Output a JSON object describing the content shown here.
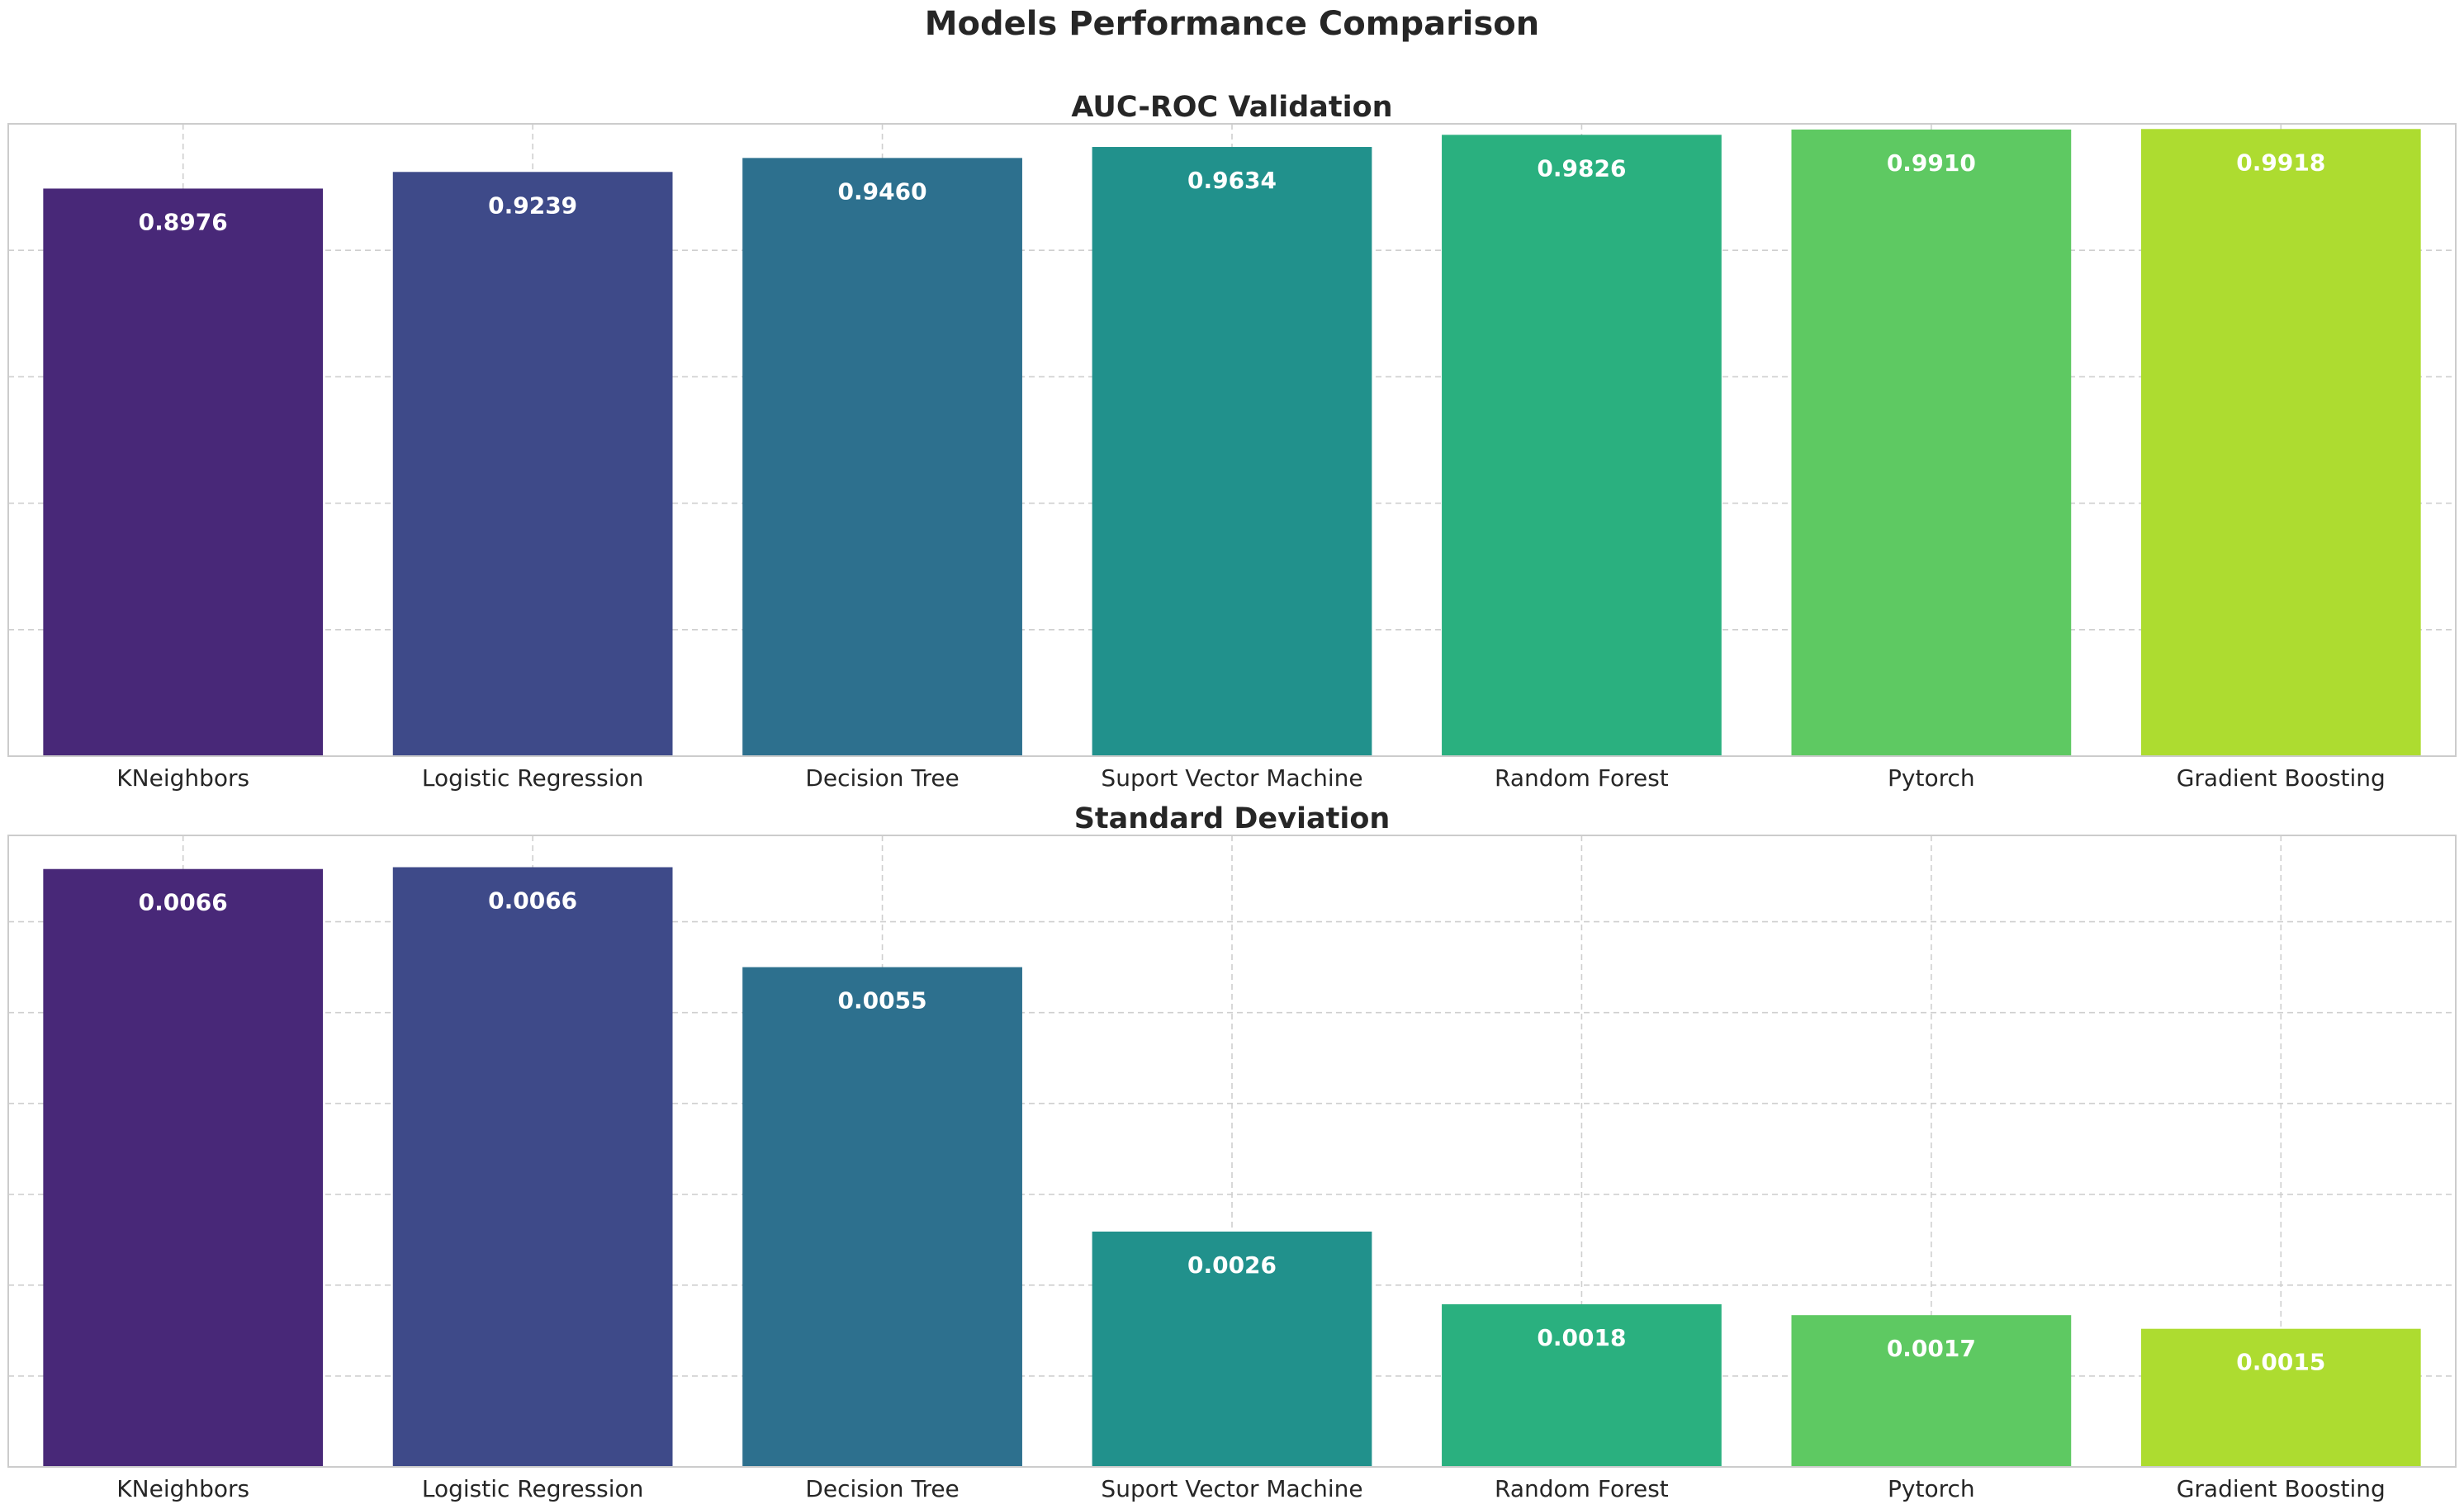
{
  "figure": {
    "title": "Models Performance Comparison"
  },
  "colors": [
    "#482878",
    "#3e4a89",
    "#2d708e",
    "#21918c",
    "#2ab07f",
    "#5ec962",
    "#addc30"
  ],
  "chart_data": [
    {
      "type": "bar",
      "title": "AUC-ROC Validation",
      "categories": [
        "KNeighbors",
        "Logistic Regression",
        "Decision Tree",
        "Suport Vector Machine",
        "Random Forest",
        "Pytorch",
        "Gradient Boosting"
      ],
      "values": [
        0.8976,
        0.9239,
        0.946,
        0.9634,
        0.9826,
        0.991,
        0.9918
      ],
      "labels": [
        "0.8976",
        "0.9239",
        "0.9460",
        "0.9634",
        "0.9826",
        "0.9910",
        "0.9918"
      ],
      "xlabel": "",
      "ylabel": "",
      "ylim": [
        0,
        1.0
      ],
      "yticks": [
        0,
        0.2,
        0.4,
        0.6,
        0.8,
        1.0
      ],
      "ytick_labels_visible": false,
      "grid": true
    },
    {
      "type": "bar",
      "title": "Standard Deviation",
      "categories": [
        "KNeighbors",
        "Logistic Regression",
        "Decision Tree",
        "Suport Vector Machine",
        "Random Forest",
        "Pytorch",
        "Gradient Boosting"
      ],
      "values": [
        0.00658,
        0.0066,
        0.0055,
        0.00259,
        0.00179,
        0.00167,
        0.00152
      ],
      "labels": [
        "0.0066",
        "0.0066",
        "0.0055",
        "0.0026",
        "0.0018",
        "0.0017",
        "0.0015"
      ],
      "xlabel": "",
      "ylabel": "",
      "ylim": [
        0,
        0.00695
      ],
      "yticks": [
        0,
        0.001,
        0.002,
        0.003,
        0.004,
        0.005,
        0.006
      ],
      "ytick_labels_visible": false,
      "grid": true
    }
  ]
}
